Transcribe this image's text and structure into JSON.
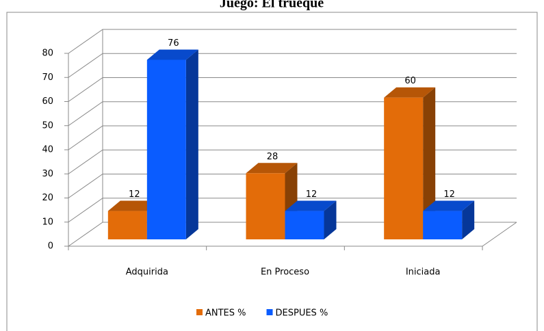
{
  "chart_data": {
    "type": "bar3d",
    "title": "Juego: El trueque",
    "categories": [
      "Adquirida",
      "En Proceso",
      "Iniciada"
    ],
    "series": [
      {
        "name": "ANTES %",
        "color": "#e36c09",
        "values": [
          12,
          28,
          60
        ]
      },
      {
        "name": "DESPUES %",
        "color": "#0a5cff",
        "values": [
          76,
          12,
          12
        ]
      }
    ],
    "ylim": [
      0,
      80
    ],
    "yticks": [
      0,
      10,
      20,
      30,
      40,
      50,
      60,
      70,
      80
    ],
    "grid": true,
    "legend": "bottom"
  }
}
